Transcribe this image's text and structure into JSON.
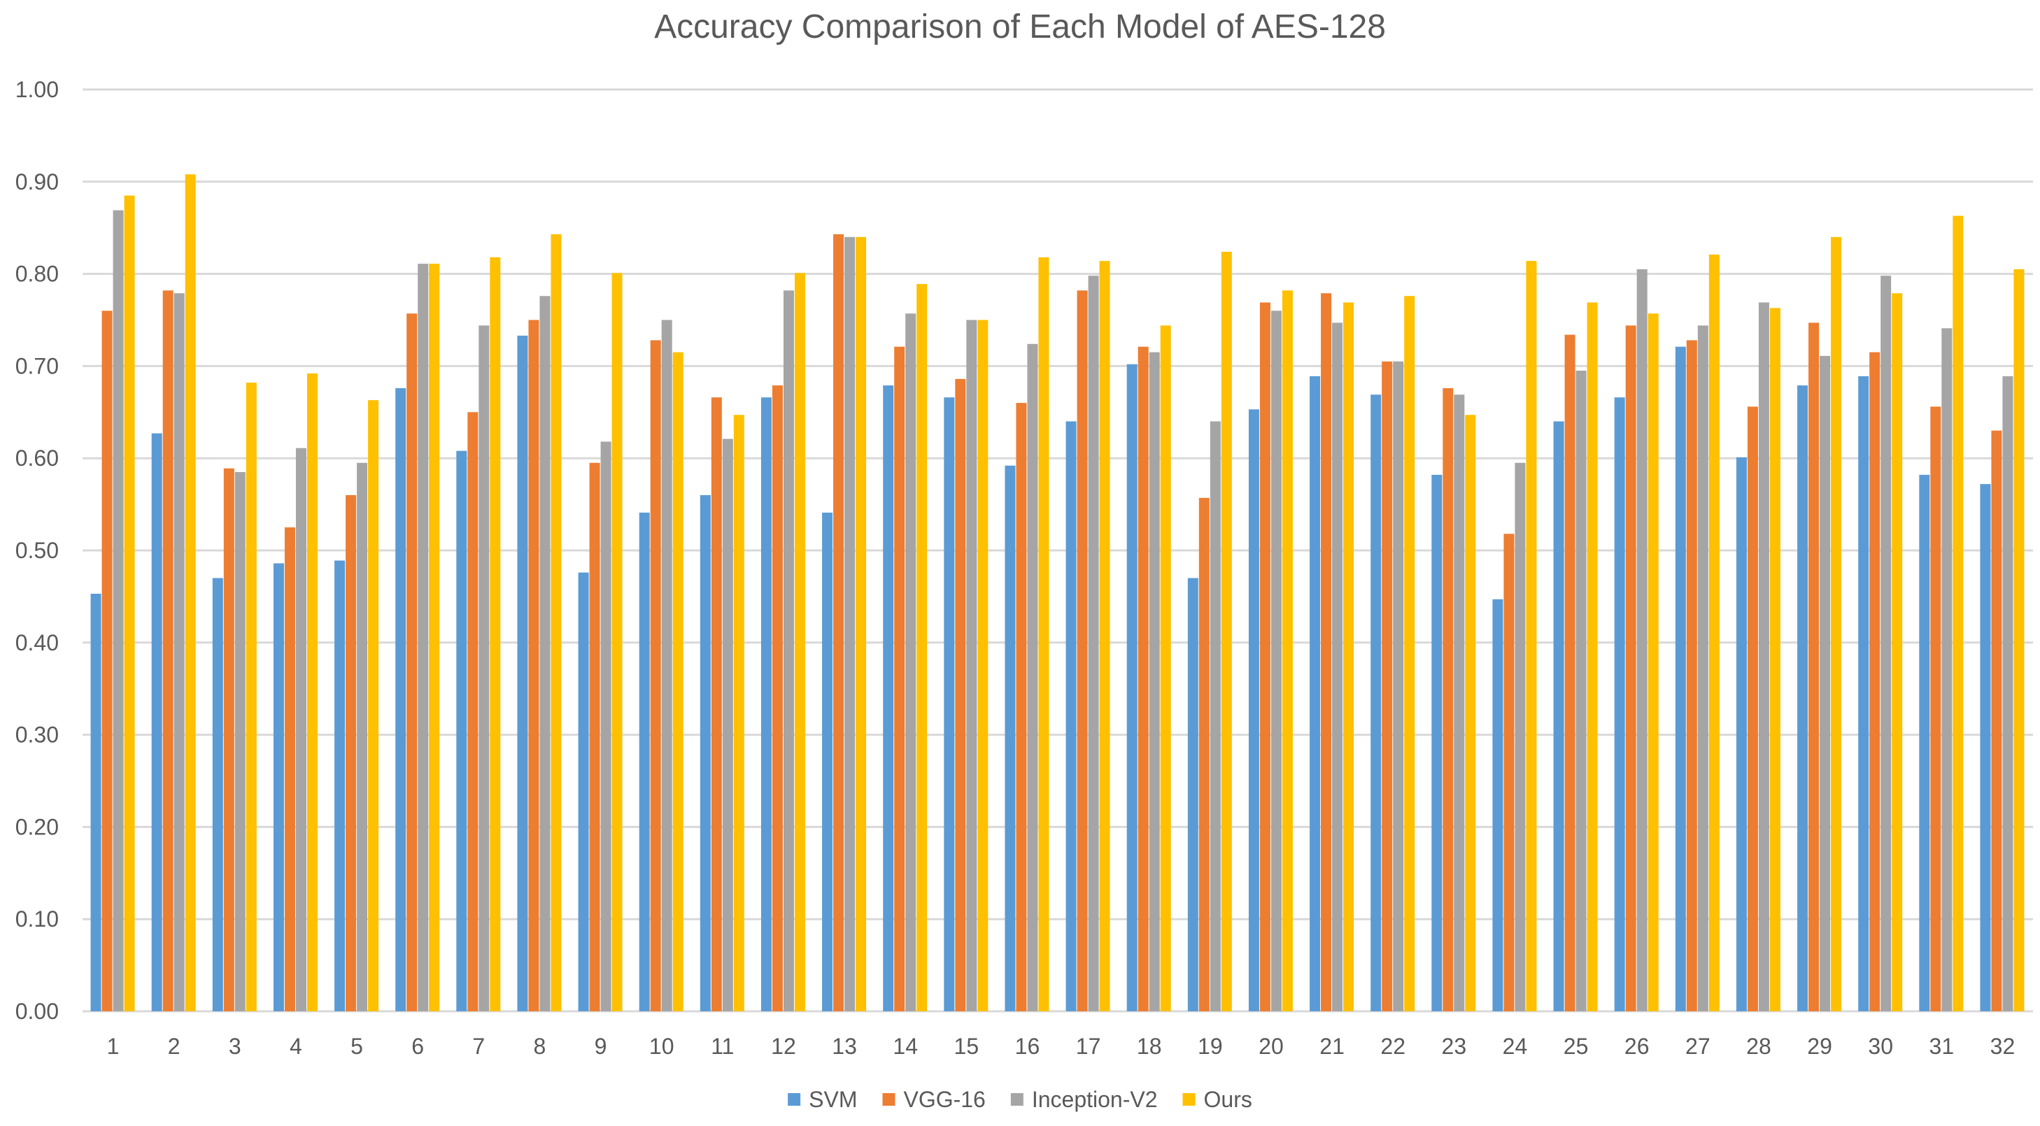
{
  "chart_data": {
    "type": "bar",
    "title": "Accuracy Comparison  of Each Model of AES-128",
    "xlabel": "",
    "ylabel": "",
    "ylim": [
      0,
      1.0
    ],
    "y_ticks": [
      "0.00",
      "0.10",
      "0.20",
      "0.30",
      "0.40",
      "0.50",
      "0.60",
      "0.70",
      "0.80",
      "0.90",
      "1.00"
    ],
    "grid": true,
    "legend_position": "bottom",
    "categories": [
      "1",
      "2",
      "3",
      "4",
      "5",
      "6",
      "7",
      "8",
      "9",
      "10",
      "11",
      "12",
      "13",
      "14",
      "15",
      "16",
      "17",
      "18",
      "19",
      "20",
      "21",
      "22",
      "23",
      "24",
      "25",
      "26",
      "27",
      "28",
      "29",
      "30",
      "31",
      "32"
    ],
    "series": [
      {
        "name": "SVM",
        "color": "#5B9BD5",
        "values": [
          0.453,
          0.627,
          0.47,
          0.486,
          0.489,
          0.676,
          0.608,
          0.733,
          0.476,
          0.541,
          0.56,
          0.666,
          0.541,
          0.679,
          0.666,
          0.592,
          0.64,
          0.702,
          0.47,
          0.653,
          0.689,
          0.669,
          0.582,
          0.447,
          0.64,
          0.666,
          0.721,
          0.601,
          0.679,
          0.689,
          0.582,
          0.572
        ]
      },
      {
        "name": "VGG-16",
        "color": "#ED7D31",
        "values": [
          0.76,
          0.782,
          0.589,
          0.525,
          0.56,
          0.757,
          0.65,
          0.75,
          0.595,
          0.728,
          0.666,
          0.679,
          0.843,
          0.721,
          0.686,
          0.66,
          0.782,
          0.721,
          0.557,
          0.769,
          0.779,
          0.705,
          0.676,
          0.518,
          0.734,
          0.744,
          0.728,
          0.656,
          0.747,
          0.715,
          0.656,
          0.63
        ]
      },
      {
        "name": "Inception-V2",
        "color": "#A5A5A5",
        "values": [
          0.869,
          0.779,
          0.585,
          0.611,
          0.595,
          0.811,
          0.744,
          0.776,
          0.618,
          0.75,
          0.621,
          0.782,
          0.84,
          0.757,
          0.75,
          0.724,
          0.798,
          0.715,
          0.64,
          0.76,
          0.747,
          0.705,
          0.669,
          0.595,
          0.695,
          0.805,
          0.744,
          0.769,
          0.711,
          0.798,
          0.741,
          0.689
        ]
      },
      {
        "name": "Ours",
        "color": "#FFC000",
        "values": [
          0.885,
          0.908,
          0.682,
          0.692,
          0.663,
          0.811,
          0.818,
          0.843,
          0.801,
          0.715,
          0.647,
          0.801,
          0.84,
          0.789,
          0.75,
          0.818,
          0.814,
          0.744,
          0.824,
          0.782,
          0.769,
          0.776,
          0.647,
          0.814,
          0.769,
          0.757,
          0.821,
          0.763,
          0.84,
          0.779,
          0.863,
          0.805
        ]
      }
    ]
  }
}
